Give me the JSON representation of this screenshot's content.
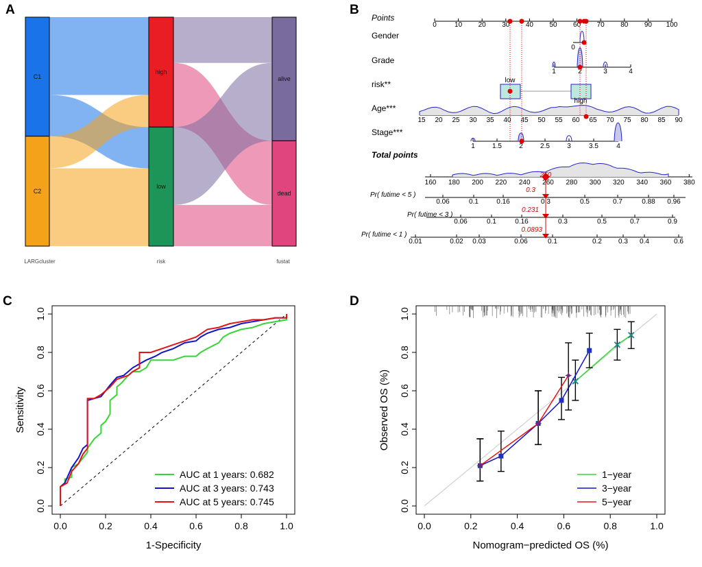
{
  "colors": {
    "c1": "#1a73e8",
    "c2": "#f5a21b",
    "high": "#ea1c24",
    "low": "#1e9558",
    "alive": "#7a6b9e",
    "dead": "#e0457e",
    "roc1": "#33d633",
    "roc3": "#1212cc",
    "roc5": "#e61212",
    "point": "#e00000"
  },
  "panel_labels": [
    "A",
    "B",
    "C",
    "D"
  ],
  "sankey": {
    "axis_labels": [
      "LARGcluster",
      "risk",
      "fustat"
    ],
    "left_nodes": [
      {
        "label": "C1",
        "share": 0.52
      },
      {
        "label": "C2",
        "share": 0.48
      }
    ],
    "mid_nodes": [
      {
        "label": "high",
        "share": 0.48
      },
      {
        "label": "low",
        "share": 0.52
      }
    ],
    "right_nodes": [
      {
        "label": "alive",
        "share": 0.54
      },
      {
        "label": "dead",
        "share": 0.46
      }
    ],
    "flows_1": [
      {
        "from": 0,
        "to": 0,
        "share": 0.34
      },
      {
        "from": 0,
        "to": 1,
        "share": 0.18
      },
      {
        "from": 1,
        "to": 0,
        "share": 0.14
      },
      {
        "from": 1,
        "to": 1,
        "share": 0.34
      }
    ],
    "flows_2": [
      {
        "from": 0,
        "to": 0,
        "share": 0.2
      },
      {
        "from": 0,
        "to": 1,
        "share": 0.28
      },
      {
        "from": 1,
        "to": 0,
        "share": 0.34
      },
      {
        "from": 1,
        "to": 1,
        "share": 0.18
      }
    ]
  },
  "nomogram": {
    "rows": [
      {
        "label": "Points",
        "italic": true,
        "bold": false,
        "ticks": [
          "0",
          "10",
          "20",
          "30",
          "40",
          "50",
          "60",
          "70",
          "80",
          "90",
          "100"
        ]
      },
      {
        "label": "Gender",
        "italic": false,
        "bold": false,
        "ticks": [
          "0"
        ]
      },
      {
        "label": "Grade",
        "italic": false,
        "bold": false,
        "ticks": [
          "1",
          "2",
          "3",
          "4"
        ]
      },
      {
        "label": "risk**",
        "italic": false,
        "bold": false,
        "ticks": [
          "low",
          "high"
        ]
      },
      {
        "label": "Age***",
        "italic": false,
        "bold": false,
        "ticks": [
          "15",
          "20",
          "25",
          "30",
          "35",
          "40",
          "45",
          "50",
          "55",
          "60",
          "65",
          "70",
          "75",
          "80",
          "85",
          "90"
        ]
      },
      {
        "label": "Stage***",
        "italic": false,
        "bold": false,
        "ticks": [
          "1",
          "1.5",
          "2",
          "2.5",
          "3",
          "3.5",
          "4"
        ]
      },
      {
        "label": "Total points",
        "italic": true,
        "bold": true,
        "ticks": [
          "160",
          "180",
          "200",
          "220",
          "240",
          "260",
          "280",
          "300",
          "320",
          "340",
          "360",
          "380"
        ]
      },
      {
        "label": "Pr( futime < 5 )",
        "italic": true,
        "bold": false,
        "ticks": [
          "0.06",
          "0.1",
          "0.16",
          "0.3",
          "0.5",
          "0.7",
          "0.88",
          "0.96"
        ]
      },
      {
        "label": "Pr( futime < 3 )",
        "italic": true,
        "bold": false,
        "ticks": [
          "0.06",
          "0.1",
          "0.16",
          "0.3",
          "0.5",
          "0.7",
          "0.9"
        ]
      },
      {
        "label": "Pr( futime < 1 )",
        "italic": true,
        "bold": false,
        "ticks": [
          "0.01",
          "0.02",
          "0.03",
          "0.06",
          "0.1",
          "0.2",
          "0.3",
          "0.4",
          "0.6"
        ]
      }
    ],
    "total_value": "250",
    "predictions": [
      "0.3",
      "0.231",
      "0.0893"
    ]
  },
  "chart_data": [
    {
      "type": "line",
      "title": "",
      "xlabel": "1-Specificity",
      "ylabel": "Sensitivity",
      "xlim": [
        0,
        1
      ],
      "ylim": [
        0,
        1
      ],
      "xticks": [
        "0.0",
        "0.2",
        "0.4",
        "0.6",
        "0.8",
        "1.0"
      ],
      "yticks": [
        "0.0",
        "0.2",
        "0.4",
        "0.6",
        "0.8",
        "1.0"
      ],
      "legend_position": "bottom-right",
      "series": [
        {
          "name": "AUC at 1 years: 0.682",
          "color_key": "roc1",
          "x": [
            0,
            0,
            0.02,
            0.02,
            0.05,
            0.05,
            0.08,
            0.1,
            0.12,
            0.12,
            0.15,
            0.18,
            0.18,
            0.2,
            0.22,
            0.22,
            0.25,
            0.25,
            0.27,
            0.3,
            0.32,
            0.35,
            0.38,
            0.4,
            0.45,
            0.5,
            0.55,
            0.6,
            0.62,
            0.65,
            0.7,
            0.72,
            0.75,
            0.8,
            0.85,
            0.9,
            1.0,
            1.0
          ],
          "y": [
            0,
            0.1,
            0.12,
            0.14,
            0.15,
            0.2,
            0.22,
            0.25,
            0.28,
            0.3,
            0.35,
            0.38,
            0.42,
            0.44,
            0.48,
            0.55,
            0.58,
            0.62,
            0.64,
            0.68,
            0.7,
            0.7,
            0.72,
            0.76,
            0.76,
            0.76,
            0.78,
            0.78,
            0.8,
            0.82,
            0.85,
            0.88,
            0.9,
            0.92,
            0.93,
            0.95,
            0.97,
            1.0
          ]
        },
        {
          "name": "AUC at 3 years: 0.743",
          "color_key": "roc3",
          "x": [
            0,
            0,
            0.02,
            0.05,
            0.08,
            0.1,
            0.12,
            0.12,
            0.15,
            0.18,
            0.2,
            0.22,
            0.25,
            0.28,
            0.3,
            0.32,
            0.35,
            0.38,
            0.42,
            0.45,
            0.5,
            0.55,
            0.6,
            0.62,
            0.65,
            0.7,
            0.75,
            0.8,
            0.85,
            0.9,
            0.95,
            1.0,
            1.0
          ],
          "y": [
            0,
            0.1,
            0.12,
            0.2,
            0.25,
            0.3,
            0.32,
            0.55,
            0.56,
            0.57,
            0.6,
            0.63,
            0.67,
            0.68,
            0.7,
            0.72,
            0.74,
            0.76,
            0.78,
            0.8,
            0.82,
            0.85,
            0.86,
            0.88,
            0.9,
            0.92,
            0.93,
            0.95,
            0.96,
            0.97,
            0.98,
            0.98,
            1.0
          ]
        },
        {
          "name": "AUC at 5 years: 0.745",
          "color_key": "roc5",
          "x": [
            0,
            0,
            0.03,
            0.05,
            0.08,
            0.1,
            0.12,
            0.12,
            0.15,
            0.18,
            0.2,
            0.22,
            0.25,
            0.3,
            0.32,
            0.35,
            0.35,
            0.4,
            0.45,
            0.5,
            0.55,
            0.6,
            0.65,
            0.7,
            0.75,
            0.8,
            0.85,
            0.9,
            0.95,
            1.0,
            1.0
          ],
          "y": [
            0,
            0.1,
            0.12,
            0.18,
            0.22,
            0.27,
            0.3,
            0.56,
            0.56,
            0.58,
            0.6,
            0.62,
            0.66,
            0.68,
            0.7,
            0.72,
            0.8,
            0.8,
            0.82,
            0.84,
            0.86,
            0.88,
            0.92,
            0.93,
            0.95,
            0.96,
            0.97,
            0.97,
            0.98,
            0.98,
            1.0
          ]
        }
      ]
    },
    {
      "type": "line",
      "title": "",
      "xlabel": "Nomogram−predicted OS (%)",
      "ylabel": "Observed OS (%)",
      "xlim": [
        0,
        1
      ],
      "ylim": [
        0,
        1
      ],
      "xticks": [
        "0.0",
        "0.2",
        "0.4",
        "0.6",
        "0.8",
        "1.0"
      ],
      "yticks": [
        "0.0",
        "0.2",
        "0.4",
        "0.6",
        "0.8",
        "1.0"
      ],
      "legend_position": "bottom-right",
      "series": [
        {
          "name": "1−year",
          "color_key": "roc1",
          "x": [
            0.65,
            0.83,
            0.89
          ],
          "y": [
            0.65,
            0.84,
            0.89
          ],
          "err_low": [
            0.55,
            0.76,
            0.82
          ],
          "err_high": [
            0.76,
            0.92,
            0.96
          ]
        },
        {
          "name": "3−year",
          "color_key": "roc3",
          "x": [
            0.24,
            0.33,
            0.49,
            0.59,
            0.71
          ],
          "y": [
            0.21,
            0.26,
            0.43,
            0.55,
            0.81
          ],
          "err_low": [
            0.13,
            0.18,
            0.32,
            0.45,
            0.72
          ],
          "err_high": [
            0.35,
            0.39,
            0.6,
            0.67,
            0.9
          ]
        },
        {
          "name": "5−year",
          "color_key": "roc5",
          "x": [
            0.24,
            0.49,
            0.62
          ],
          "y": [
            0.21,
            0.43,
            0.68
          ],
          "err_low": [
            0.13,
            0.32,
            0.5
          ],
          "err_high": [
            0.35,
            0.6,
            0.85
          ]
        }
      ]
    }
  ]
}
